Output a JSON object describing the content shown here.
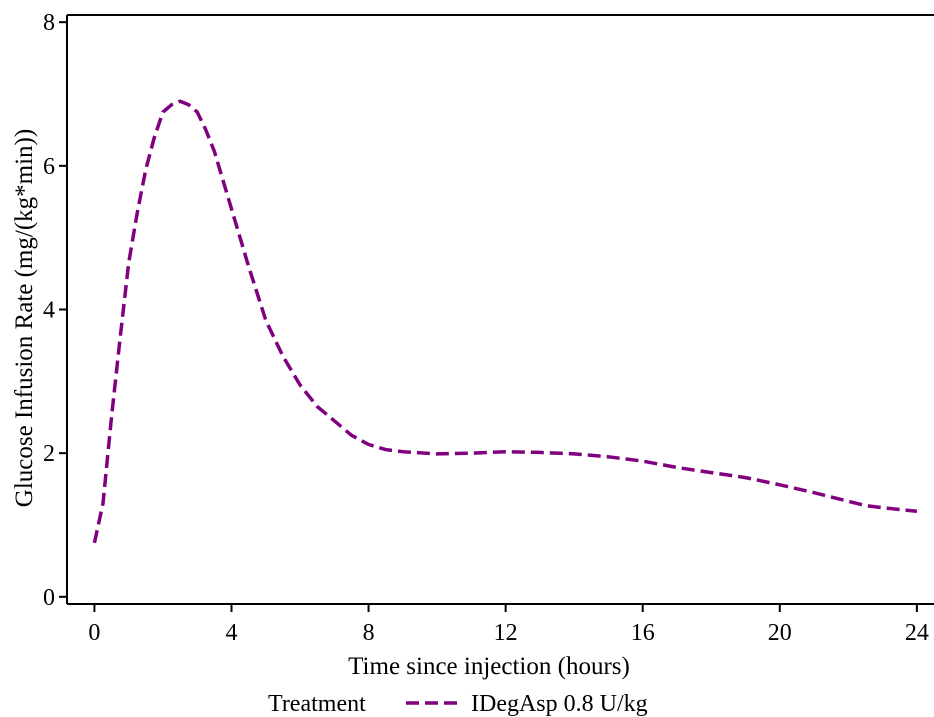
{
  "chart_data": {
    "type": "line",
    "title": "",
    "xlabel": "Time since injection (hours)",
    "ylabel": "Glucose Infusion Rate (mg/(kg*min))",
    "xlim": [
      -0.8,
      24.5
    ],
    "ylim": [
      -0.1,
      8.1
    ],
    "x_ticks": [
      0,
      4,
      8,
      12,
      16,
      20,
      24
    ],
    "y_ticks": [
      0,
      2,
      4,
      6,
      8
    ],
    "grid": false,
    "legend": {
      "title": "Treatment",
      "placement": "bottom"
    },
    "series": [
      {
        "name": "IDegAsp 0.8 U/kg",
        "color": "#800080",
        "line_style": "dashed",
        "x": [
          0,
          0.25,
          0.5,
          0.75,
          1.0,
          1.25,
          1.5,
          1.75,
          2.0,
          2.25,
          2.5,
          2.75,
          3.0,
          3.25,
          3.5,
          4.0,
          4.5,
          5.0,
          5.5,
          6.0,
          6.5,
          7.0,
          7.5,
          8.0,
          8.5,
          9.0,
          10.0,
          11.0,
          12.0,
          13.0,
          14.0,
          15.0,
          16.0,
          17.0,
          18.0,
          19.0,
          20.0,
          21.0,
          22.0,
          22.5,
          23.0,
          24.0
        ],
        "y": [
          0.75,
          1.3,
          2.5,
          3.6,
          4.65,
          5.35,
          5.95,
          6.4,
          6.75,
          6.85,
          6.9,
          6.85,
          6.75,
          6.5,
          6.2,
          5.4,
          4.6,
          3.85,
          3.35,
          2.95,
          2.65,
          2.45,
          2.25,
          2.12,
          2.05,
          2.02,
          1.99,
          2.0,
          2.02,
          2.01,
          1.99,
          1.95,
          1.89,
          1.8,
          1.73,
          1.66,
          1.56,
          1.45,
          1.33,
          1.27,
          1.24,
          1.19
        ]
      }
    ]
  },
  "colors": {
    "series": "#800080",
    "axis": "#000000",
    "background": "#ffffff"
  }
}
